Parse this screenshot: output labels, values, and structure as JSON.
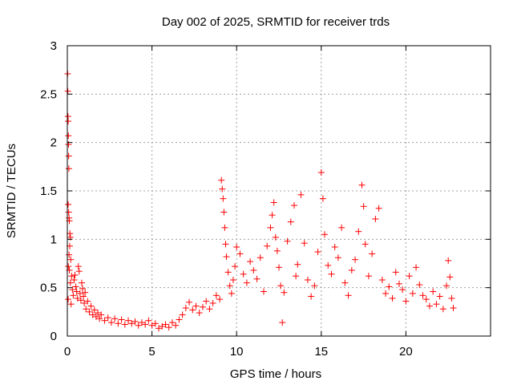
{
  "chart_data": {
    "type": "scatter",
    "title": "Day 002 of 2025, SRMTID for receiver trds",
    "xlabel": "GPS time / hours",
    "ylabel": "SRMTID / TECUs",
    "xlim": [
      0,
      25
    ],
    "ylim": [
      0,
      3
    ],
    "xticks": [
      0,
      5,
      10,
      15,
      20
    ],
    "yticks": [
      0,
      0.5,
      1,
      1.5,
      2,
      2.5,
      3
    ],
    "xtick_labels": [
      "0",
      "5",
      "10",
      "15",
      "20"
    ],
    "ytick_labels": [
      "0",
      "0.5",
      "1",
      "1.5",
      "2",
      "2.5",
      "3"
    ],
    "grid": true,
    "marker": "+",
    "series_color": "#ff0000",
    "series": [
      {
        "name": "SRMTID",
        "points": [
          [
            0.02,
            2.71
          ],
          [
            0.03,
            2.53
          ],
          [
            0.04,
            2.27
          ],
          [
            0.05,
            2.22
          ],
          [
            0.06,
            2.07
          ],
          [
            0.07,
            1.98
          ],
          [
            0.08,
            1.86
          ],
          [
            0.09,
            1.73
          ],
          [
            0.05,
            1.36
          ],
          [
            0.08,
            1.28
          ],
          [
            0.1,
            1.22
          ],
          [
            0.12,
            1.19
          ],
          [
            0.15,
            1.06
          ],
          [
            0.18,
            1.02
          ],
          [
            0.14,
            0.93
          ],
          [
            0.1,
            0.84
          ],
          [
            0.2,
            0.79
          ],
          [
            0.06,
            0.72
          ],
          [
            0.12,
            0.68
          ],
          [
            0.25,
            0.62
          ],
          [
            0.18,
            0.55
          ],
          [
            0.3,
            0.48
          ],
          [
            0.35,
            0.42
          ],
          [
            0.05,
            0.38
          ],
          [
            0.22,
            0.33
          ],
          [
            0.4,
            0.58
          ],
          [
            0.45,
            0.63
          ],
          [
            0.5,
            0.51
          ],
          [
            0.55,
            0.46
          ],
          [
            0.6,
            0.39
          ],
          [
            0.65,
            0.72
          ],
          [
            0.7,
            0.67
          ],
          [
            0.75,
            0.44
          ],
          [
            0.8,
            0.37
          ],
          [
            0.85,
            0.55
          ],
          [
            0.9,
            0.49
          ],
          [
            0.95,
            0.41
          ],
          [
            1.0,
            0.34
          ],
          [
            1.05,
            0.45
          ],
          [
            1.1,
            0.28
          ],
          [
            1.2,
            0.36
          ],
          [
            1.3,
            0.25
          ],
          [
            1.4,
            0.31
          ],
          [
            1.5,
            0.22
          ],
          [
            1.6,
            0.27
          ],
          [
            1.7,
            0.2
          ],
          [
            1.8,
            0.24
          ],
          [
            1.9,
            0.18
          ],
          [
            2.0,
            0.22
          ],
          [
            2.2,
            0.16
          ],
          [
            2.4,
            0.19
          ],
          [
            2.6,
            0.14
          ],
          [
            2.8,
            0.18
          ],
          [
            3.0,
            0.13
          ],
          [
            3.2,
            0.17
          ],
          [
            3.4,
            0.12
          ],
          [
            3.6,
            0.16
          ],
          [
            3.8,
            0.13
          ],
          [
            4.0,
            0.15
          ],
          [
            4.2,
            0.11
          ],
          [
            4.4,
            0.14
          ],
          [
            4.6,
            0.12
          ],
          [
            4.8,
            0.16
          ],
          [
            5.0,
            0.11
          ],
          [
            5.2,
            0.13
          ],
          [
            5.4,
            0.08
          ],
          [
            5.6,
            0.1
          ],
          [
            5.8,
            0.12
          ],
          [
            6.0,
            0.09
          ],
          [
            6.2,
            0.14
          ],
          [
            6.4,
            0.11
          ],
          [
            6.6,
            0.17
          ],
          [
            6.8,
            0.22
          ],
          [
            7.0,
            0.29
          ],
          [
            7.2,
            0.35
          ],
          [
            7.4,
            0.27
          ],
          [
            7.6,
            0.31
          ],
          [
            7.8,
            0.24
          ],
          [
            8.0,
            0.3
          ],
          [
            8.2,
            0.36
          ],
          [
            8.4,
            0.28
          ],
          [
            8.6,
            0.34
          ],
          [
            8.8,
            0.42
          ],
          [
            9.0,
            0.38
          ],
          [
            9.1,
            1.61
          ],
          [
            9.15,
            1.52
          ],
          [
            9.2,
            1.42
          ],
          [
            9.25,
            1.28
          ],
          [
            9.3,
            1.12
          ],
          [
            9.35,
            0.95
          ],
          [
            9.4,
            0.82
          ],
          [
            9.5,
            0.66
          ],
          [
            9.6,
            0.52
          ],
          [
            9.7,
            0.44
          ],
          [
            9.8,
            0.58
          ],
          [
            9.9,
            0.72
          ],
          [
            10.0,
            0.92
          ],
          [
            10.2,
            0.85
          ],
          [
            10.4,
            0.64
          ],
          [
            10.6,
            0.55
          ],
          [
            10.8,
            0.77
          ],
          [
            11.0,
            0.68
          ],
          [
            11.2,
            0.59
          ],
          [
            11.4,
            0.81
          ],
          [
            11.6,
            0.46
          ],
          [
            11.8,
            0.93
          ],
          [
            12.0,
            1.12
          ],
          [
            12.1,
            1.25
          ],
          [
            12.2,
            1.38
          ],
          [
            12.3,
            1.02
          ],
          [
            12.4,
            0.88
          ],
          [
            12.5,
            0.71
          ],
          [
            12.6,
            0.52
          ],
          [
            12.7,
            0.14
          ],
          [
            12.8,
            0.45
          ],
          [
            13.0,
            0.98
          ],
          [
            13.2,
            1.18
          ],
          [
            13.4,
            1.35
          ],
          [
            13.5,
            0.62
          ],
          [
            13.6,
            0.74
          ],
          [
            13.8,
            1.46
          ],
          [
            14.0,
            0.96
          ],
          [
            14.2,
            0.58
          ],
          [
            14.4,
            0.41
          ],
          [
            14.6,
            0.52
          ],
          [
            14.8,
            0.87
          ],
          [
            15.0,
            1.69
          ],
          [
            15.1,
            1.42
          ],
          [
            15.2,
            1.05
          ],
          [
            15.4,
            0.73
          ],
          [
            15.6,
            0.64
          ],
          [
            15.8,
            0.92
          ],
          [
            16.0,
            0.81
          ],
          [
            16.2,
            1.12
          ],
          [
            16.4,
            0.55
          ],
          [
            16.6,
            0.42
          ],
          [
            16.8,
            0.68
          ],
          [
            17.0,
            0.79
          ],
          [
            17.2,
            1.08
          ],
          [
            17.4,
            1.56
          ],
          [
            17.5,
            1.34
          ],
          [
            17.6,
            0.95
          ],
          [
            17.8,
            0.62
          ],
          [
            18.0,
            0.85
          ],
          [
            18.2,
            1.21
          ],
          [
            18.4,
            1.32
          ],
          [
            18.6,
            0.58
          ],
          [
            18.8,
            0.44
          ],
          [
            19.0,
            0.51
          ],
          [
            19.2,
            0.39
          ],
          [
            19.4,
            0.66
          ],
          [
            19.6,
            0.54
          ],
          [
            19.8,
            0.48
          ],
          [
            20.0,
            0.36
          ],
          [
            20.2,
            0.62
          ],
          [
            20.4,
            0.44
          ],
          [
            20.6,
            0.71
          ],
          [
            20.8,
            0.53
          ],
          [
            21.0,
            0.42
          ],
          [
            21.2,
            0.38
          ],
          [
            21.4,
            0.31
          ],
          [
            21.6,
            0.46
          ],
          [
            21.8,
            0.33
          ],
          [
            22.0,
            0.41
          ],
          [
            22.2,
            0.28
          ],
          [
            22.4,
            0.52
          ],
          [
            22.5,
            0.78
          ],
          [
            22.6,
            0.61
          ],
          [
            22.7,
            0.39
          ],
          [
            22.8,
            0.29
          ]
        ]
      }
    ]
  }
}
